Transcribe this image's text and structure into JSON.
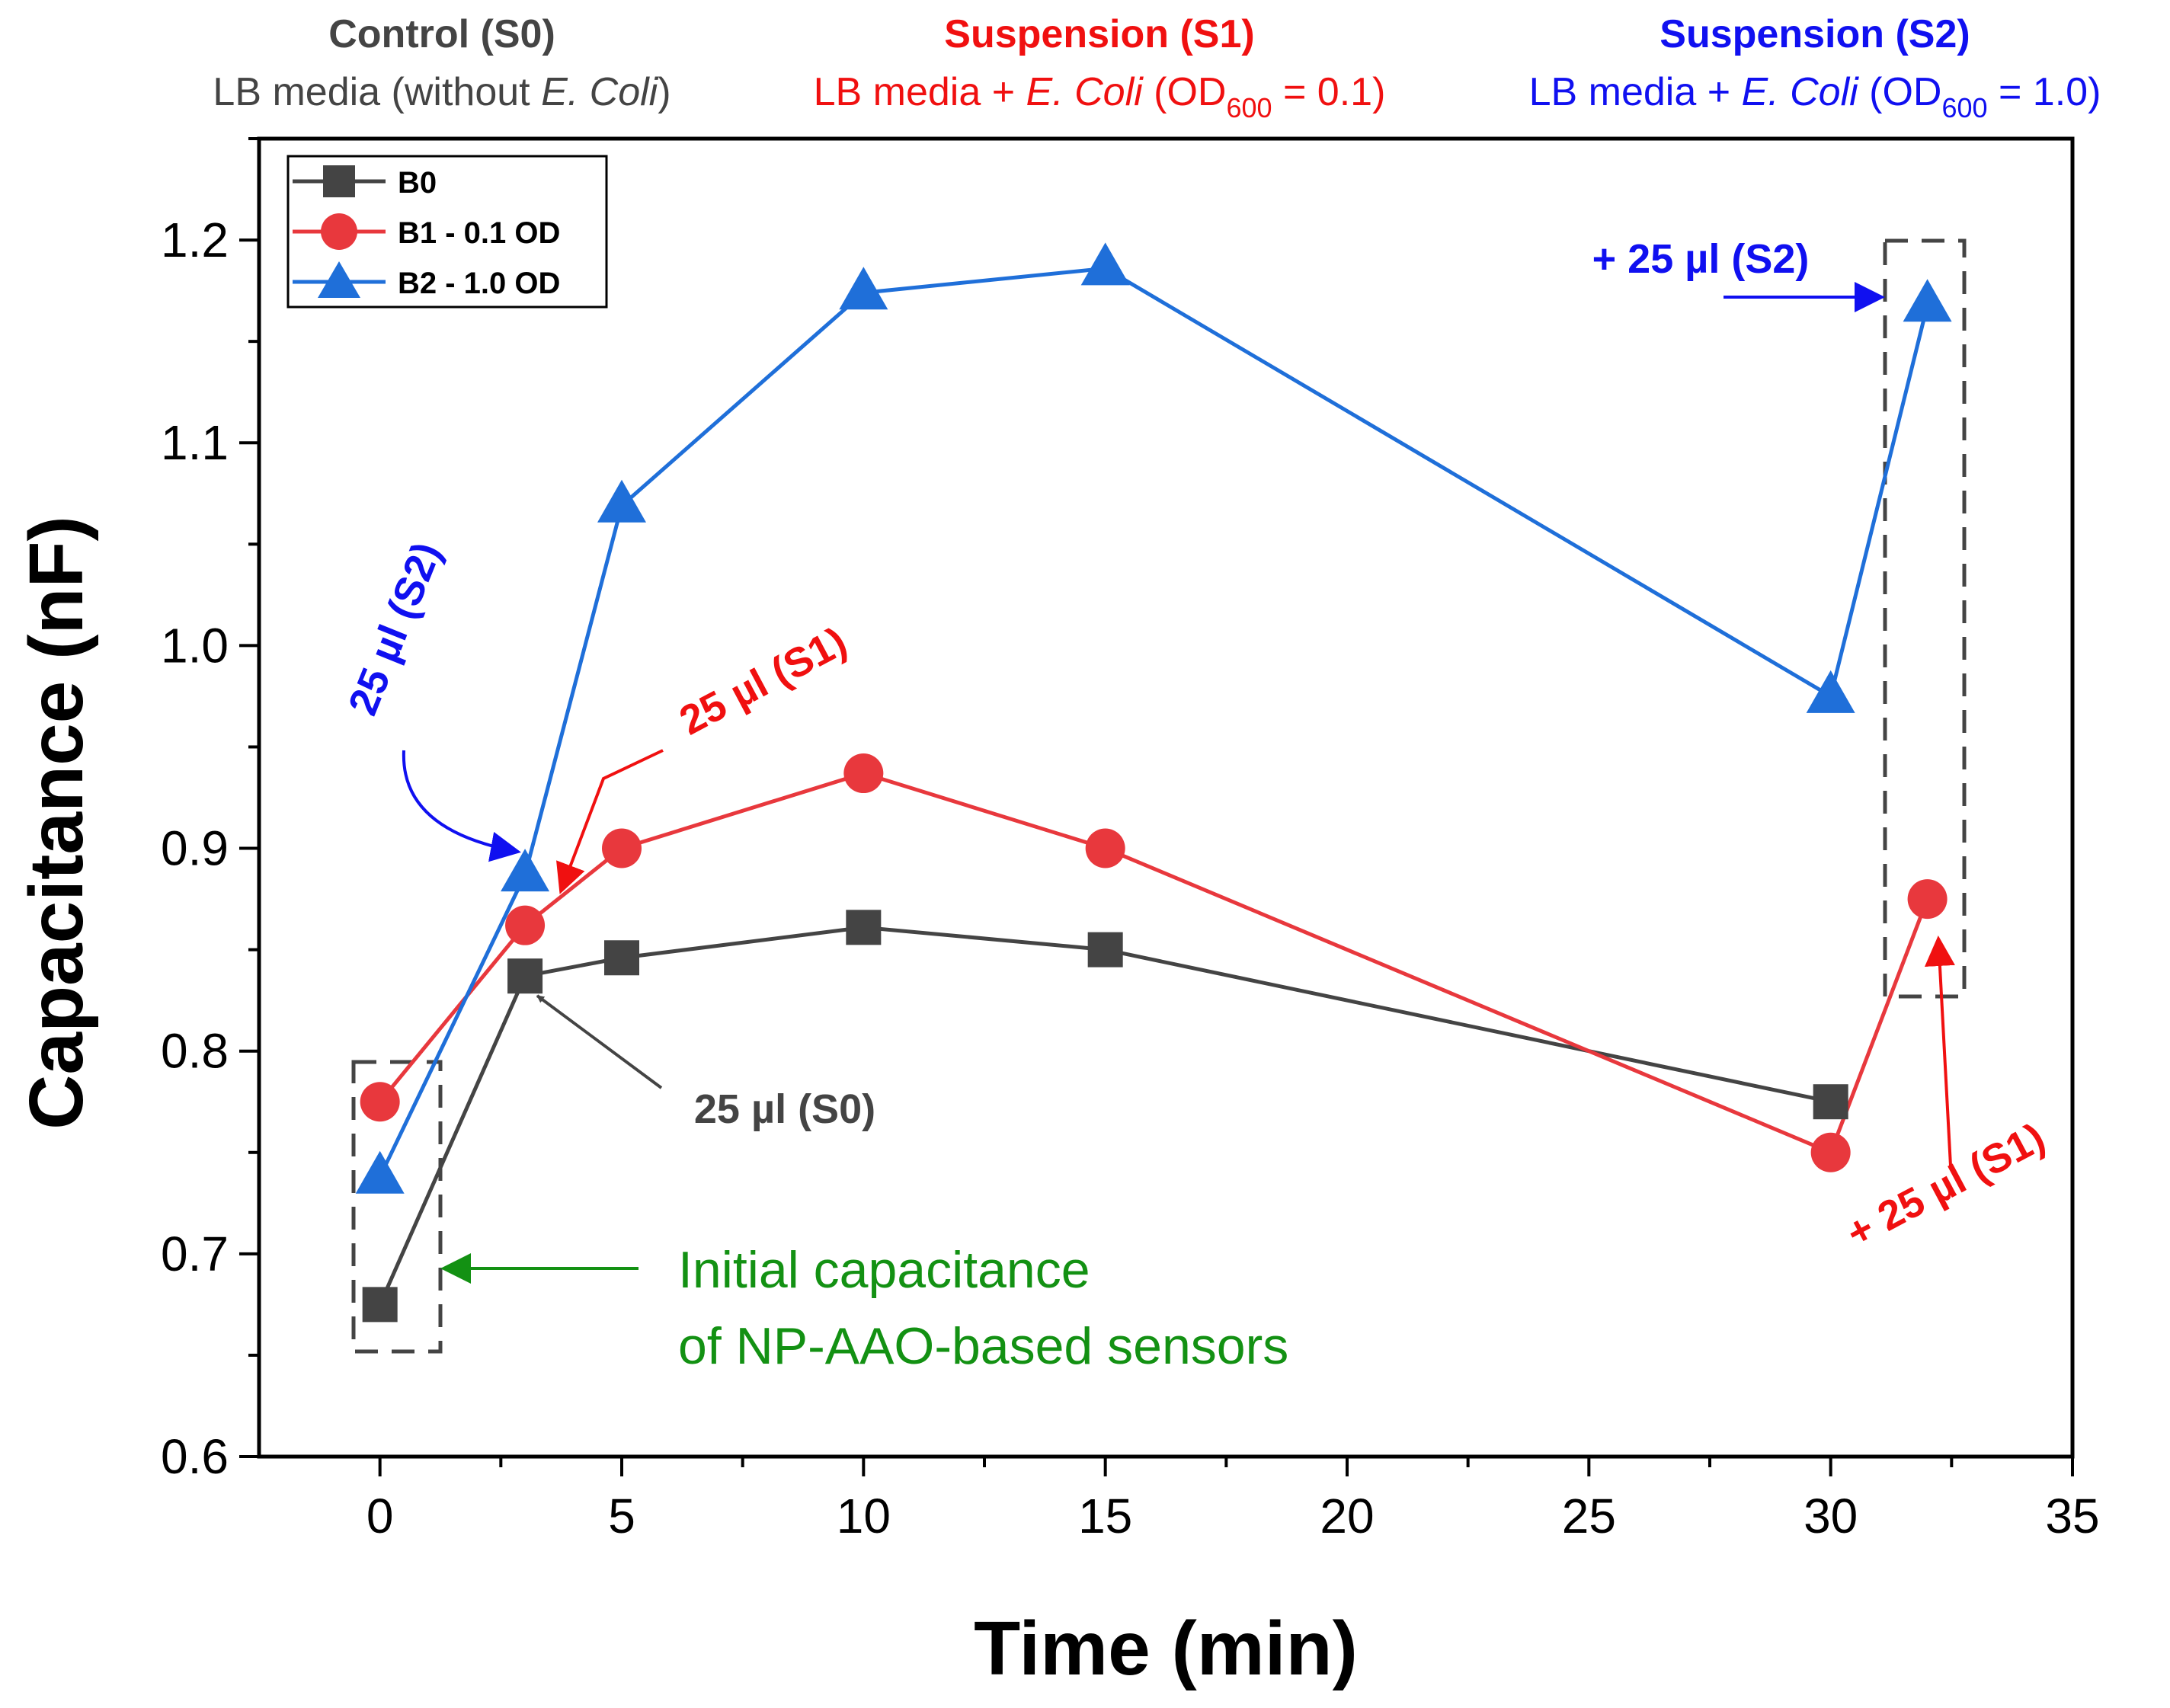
{
  "colors": {
    "b0": "#444444",
    "b1": "#e8383d",
    "b2": "#1f6fd9",
    "s1_text": "#f01010",
    "s2_text": "#1010f0",
    "green": "#139113",
    "axis": "#000000"
  },
  "headers": [
    {
      "title": "Control (S0)",
      "pre": "LB media (without ",
      "italic": "E. Coli",
      "post": ")",
      "sub": "",
      "tail": "",
      "color": "#444444"
    },
    {
      "title": "Suspension (S1)",
      "pre": "LB media + ",
      "italic": "E. Coli",
      "post": " (OD",
      "sub": "600",
      "tail": " = 0.1)",
      "color": "#f01010"
    },
    {
      "title": "Suspension (S2)",
      "pre": "LB media + ",
      "italic": "E. Coli",
      "post": " (OD",
      "sub": "600",
      "tail": " = 1.0)",
      "color": "#1010f0"
    }
  ],
  "annotations": {
    "s0": "25 µl (S0)",
    "s1": "25 µl (S1)",
    "s2": "25 µl (S2)",
    "plus_s1": "+ 25 µl (S1)",
    "plus_s2": "+ 25 µl (S2)",
    "initial_line1": "Initial capacitance",
    "initial_line2": "of NP-AAO-based sensors"
  },
  "chart_data": {
    "type": "line",
    "xlabel": "Time (min)",
    "ylabel": "Capacitance (nF)",
    "xlim": [
      -2.5,
      35
    ],
    "ylim": [
      0.6,
      1.25
    ],
    "xticks": [
      0,
      5,
      10,
      15,
      20,
      25,
      30,
      35
    ],
    "yticks": [
      0.6,
      0.7,
      0.8,
      0.9,
      1.0,
      1.1,
      1.2
    ],
    "ytick_labels": [
      "0.6",
      "0.7",
      "0.8",
      "0.9",
      "1.0",
      "1.1",
      "1.2"
    ],
    "legend_position": "top-left",
    "series": [
      {
        "name": "B0",
        "marker": "square",
        "x": [
          0,
          3,
          5,
          10,
          15,
          30,
          32
        ],
        "y": [
          0.675,
          0.837,
          0.846,
          0.861,
          0.85,
          0.775,
          null
        ]
      },
      {
        "name": "B1 - 0.1 OD",
        "marker": "circle",
        "x": [
          0,
          3,
          5,
          10,
          15,
          30,
          32
        ],
        "y": [
          0.775,
          0.862,
          0.9,
          0.937,
          0.9,
          0.75,
          0.875
        ]
      },
      {
        "name": "B2 - 1.0 OD",
        "marker": "triangle",
        "x": [
          0,
          3,
          5,
          10,
          15,
          30,
          32
        ],
        "y": [
          0.738,
          0.887,
          1.069,
          1.174,
          1.186,
          0.975,
          1.168
        ]
      }
    ]
  }
}
